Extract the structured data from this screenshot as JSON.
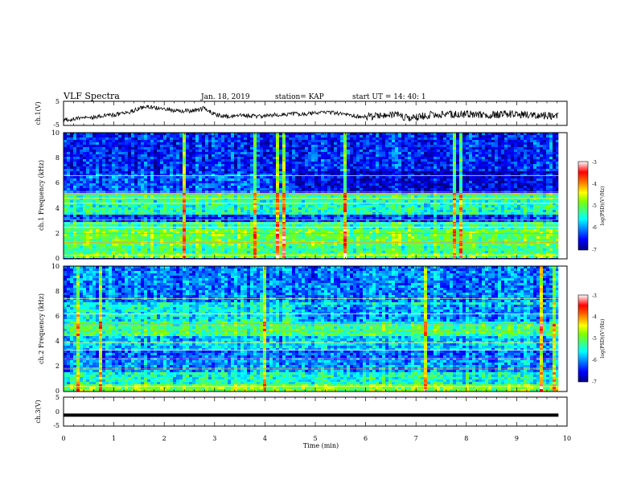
{
  "header": {
    "title": "VLF Spectra",
    "date": "Jan. 18, 2019",
    "station": "station= KAP",
    "start": "start  UT =   14: 40: 1"
  },
  "chart_data": [
    {
      "type": "line",
      "name": "ch1-waveform",
      "ylabel": "ch.1(V)",
      "ylim": [
        -5,
        5
      ],
      "y_ticks": [
        "5",
        "-5"
      ],
      "xlim": [
        0,
        10
      ],
      "x_end_min": 9.83,
      "level_profile": [
        {
          "t": 0.0,
          "v": -2.6
        },
        {
          "t": 0.4,
          "v": -2.0
        },
        {
          "t": 0.7,
          "v": -1.2
        },
        {
          "t": 1.0,
          "v": -0.6
        },
        {
          "t": 1.3,
          "v": 0.6
        },
        {
          "t": 1.6,
          "v": 2.6
        },
        {
          "t": 1.9,
          "v": 2.3
        },
        {
          "t": 2.2,
          "v": 1.2
        },
        {
          "t": 2.5,
          "v": 1.0
        },
        {
          "t": 2.8,
          "v": 2.1
        },
        {
          "t": 3.0,
          "v": -0.6
        },
        {
          "t": 3.3,
          "v": -1.6
        },
        {
          "t": 3.6,
          "v": -0.8
        },
        {
          "t": 3.9,
          "v": -1.4
        },
        {
          "t": 4.2,
          "v": -0.6
        },
        {
          "t": 4.6,
          "v": -0.3
        },
        {
          "t": 5.0,
          "v": -0.1
        },
        {
          "t": 5.3,
          "v": 0.5
        },
        {
          "t": 5.6,
          "v": -0.5
        },
        {
          "t": 5.9,
          "v": -1.5
        },
        {
          "t": 6.2,
          "v": -1.0
        },
        {
          "t": 6.5,
          "v": -0.4
        },
        {
          "t": 6.9,
          "v": -2.0
        },
        {
          "t": 7.3,
          "v": -0.6
        },
        {
          "t": 7.8,
          "v": -0.3
        },
        {
          "t": 8.3,
          "v": -0.6
        },
        {
          "t": 8.8,
          "v": -0.3
        },
        {
          "t": 9.3,
          "v": -0.7
        },
        {
          "t": 9.83,
          "v": -1.1
        }
      ]
    },
    {
      "type": "heatmap",
      "name": "ch1-spectrogram",
      "ylabel": "ch.1 Frequency  (kHz)",
      "ylim": [
        0,
        10
      ],
      "y_ticks": [
        "0",
        "2",
        "4",
        "6",
        "8",
        "10"
      ],
      "xlim": [
        0,
        10
      ],
      "x_end_min": 9.83,
      "colorbar": {
        "label": "log(PSD)(V²/Hz)",
        "range": [
          -7,
          -3
        ],
        "ticks": [
          "-3",
          "-4",
          "-5",
          "-6",
          "-7"
        ]
      },
      "bands": [
        {
          "f0": 0.0,
          "f1": 0.4,
          "level": -4.9
        },
        {
          "f0": 0.4,
          "f1": 1.0,
          "level": -5.2
        },
        {
          "f0": 1.0,
          "f1": 2.0,
          "level": -5.0
        },
        {
          "f0": 2.0,
          "f1": 2.4,
          "level": -4.9
        },
        {
          "f0": 2.4,
          "f1": 3.0,
          "level": -5.3
        },
        {
          "f0": 3.0,
          "f1": 3.5,
          "level": -6.3
        },
        {
          "f0": 3.5,
          "f1": 4.6,
          "level": -5.4
        },
        {
          "f0": 4.6,
          "f1": 5.3,
          "level": -5.2
        },
        {
          "f0": 5.3,
          "f1": 6.8,
          "level": -6.2
        },
        {
          "f0": 6.8,
          "f1": 10.0,
          "level": -6.4
        }
      ],
      "lines_khz": [
        0.3,
        1.3,
        2.0,
        2.5,
        2.8,
        3.1,
        3.6,
        4.4,
        4.8,
        5.1,
        5.3,
        6.6
      ]
    },
    {
      "type": "heatmap",
      "name": "ch2-spectrogram",
      "ylabel": "ch.2 Frequency  (kHz)",
      "ylim": [
        0,
        10
      ],
      "y_ticks": [
        "0",
        "2",
        "4",
        "6",
        "8",
        "10"
      ],
      "xlim": [
        0,
        10
      ],
      "x_end_min": 9.83,
      "colorbar": {
        "label": "log(PSD)(V²/Hz)",
        "range": [
          -7,
          -3
        ],
        "ticks": [
          "-3",
          "-4",
          "-5",
          "-6",
          "-7"
        ]
      },
      "bands": [
        {
          "f0": 0.0,
          "f1": 0.5,
          "level": -4.9
        },
        {
          "f0": 0.5,
          "f1": 1.5,
          "level": -5.5
        },
        {
          "f0": 1.5,
          "f1": 2.6,
          "level": -6.0
        },
        {
          "f0": 2.6,
          "f1": 3.2,
          "level": -6.2
        },
        {
          "f0": 3.2,
          "f1": 4.4,
          "level": -5.8
        },
        {
          "f0": 4.4,
          "f1": 5.5,
          "level": -5.2
        },
        {
          "f0": 5.5,
          "f1": 7.2,
          "level": -5.6
        },
        {
          "f0": 7.2,
          "f1": 10.0,
          "level": -6.1
        }
      ],
      "lines_khz": [
        0.4,
        1.8,
        2.6,
        3.3,
        3.9,
        4.8,
        5.4,
        6.2,
        7.4
      ]
    },
    {
      "type": "line",
      "name": "ch3-waveform",
      "ylabel": "ch.3(V)",
      "ylim": [
        -5,
        5
      ],
      "y_ticks": [
        "5",
        "0",
        "-5"
      ],
      "xlim": [
        0,
        10
      ],
      "x_end_min": 9.83,
      "level": -1.2,
      "xlabel": "Time  (min)",
      "x_ticks": [
        "0",
        "1",
        "2",
        "3",
        "4",
        "5",
        "6",
        "7",
        "8",
        "9",
        "10"
      ]
    }
  ]
}
